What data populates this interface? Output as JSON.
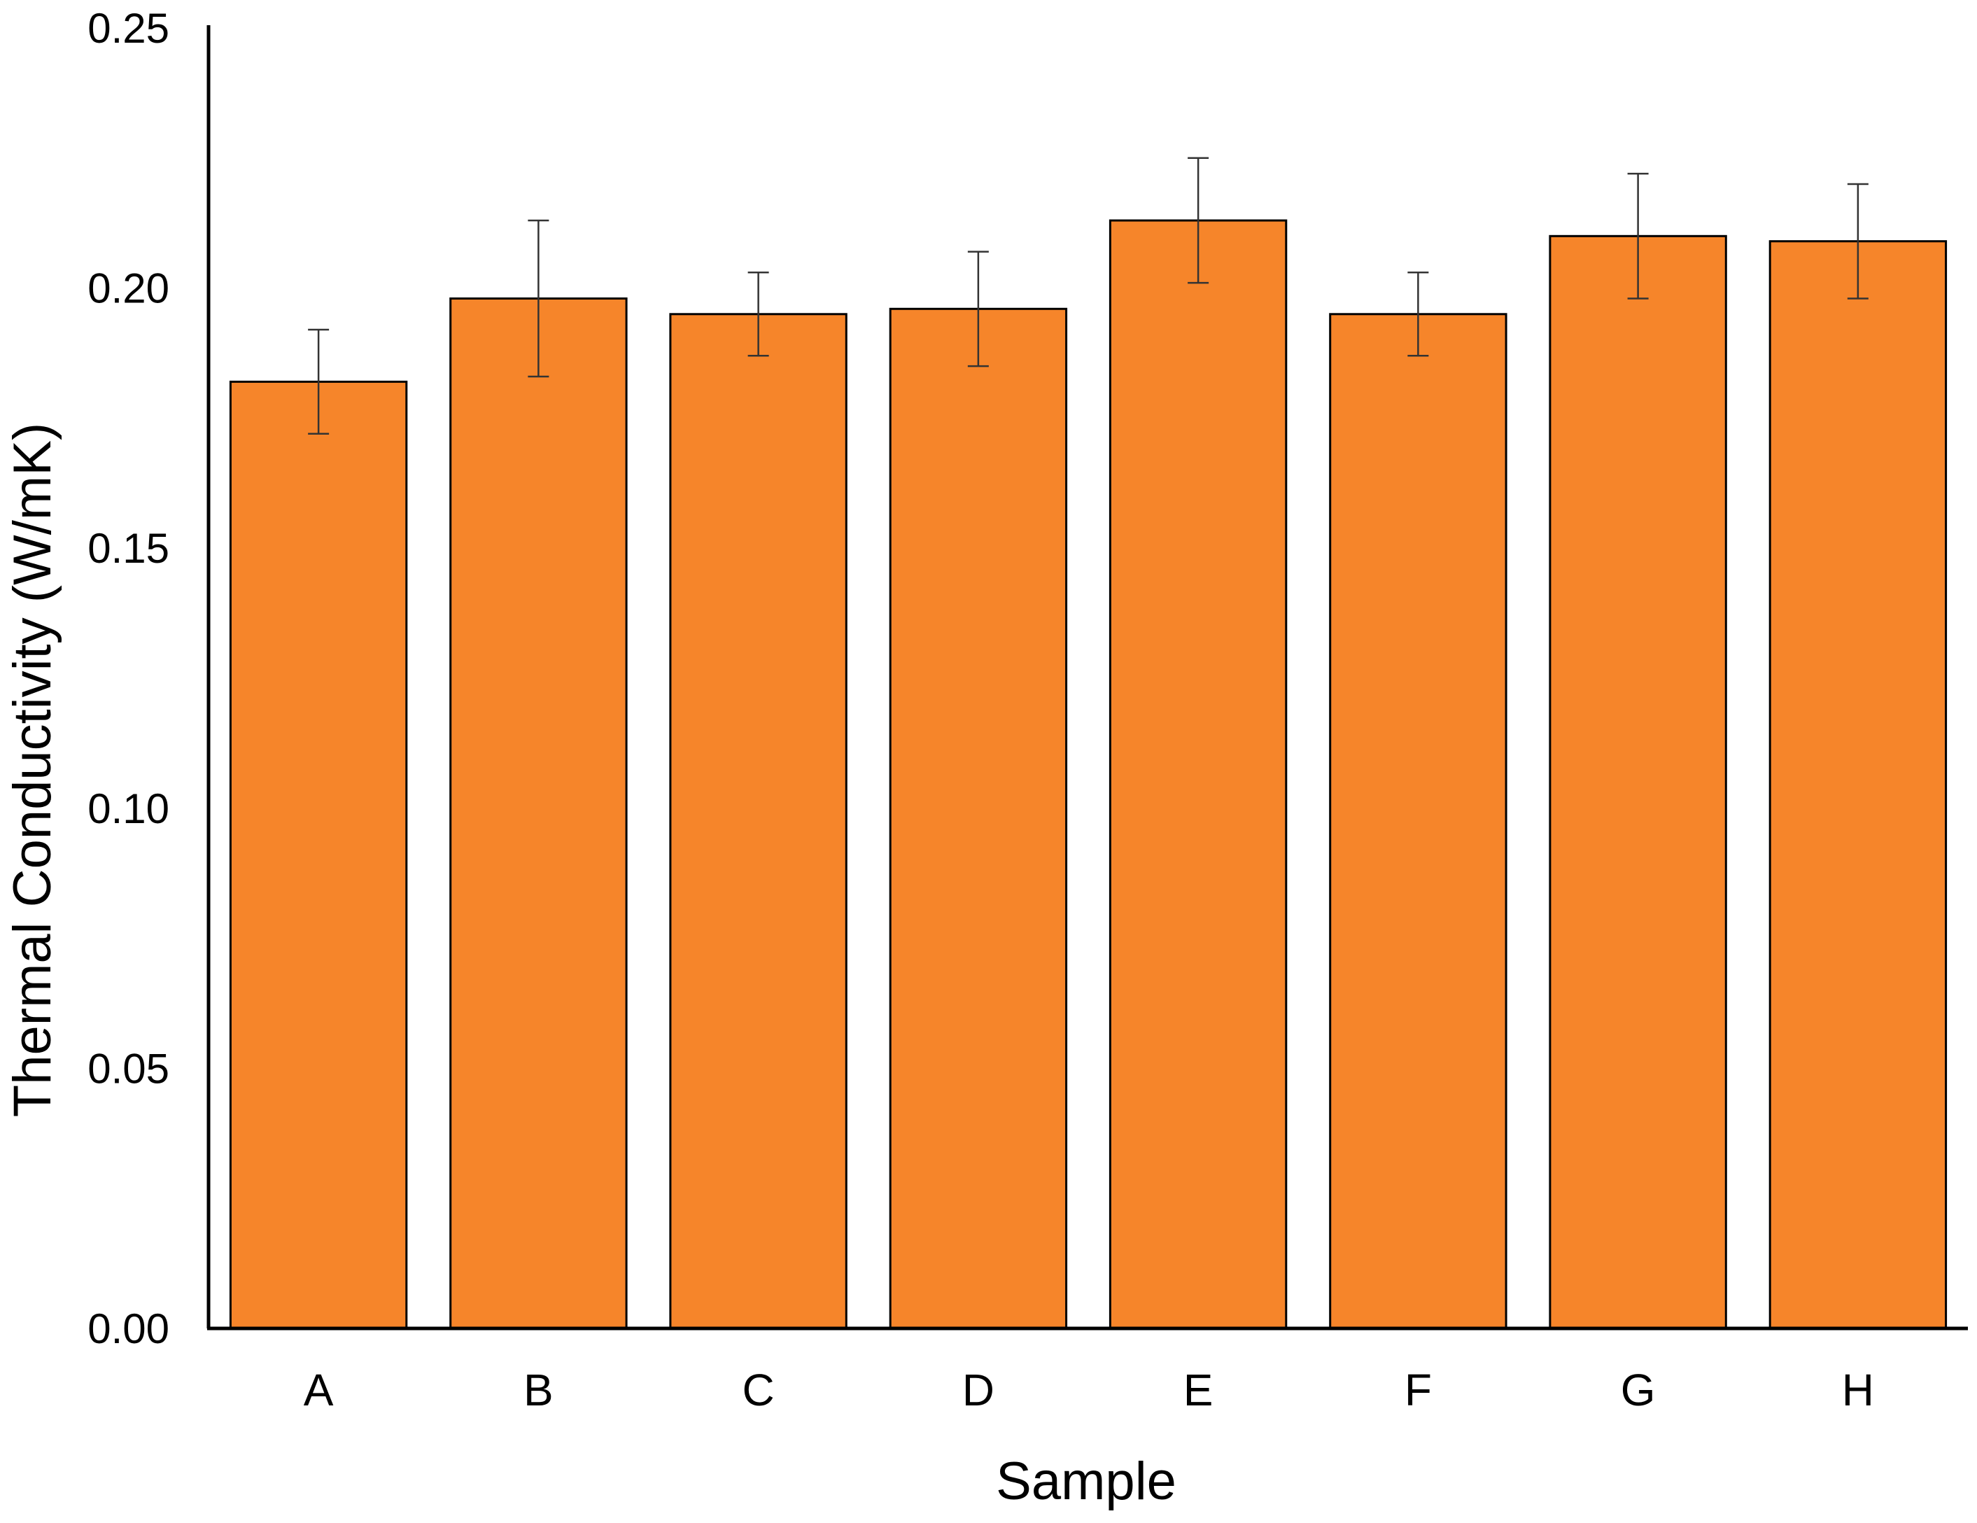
{
  "chart_data": {
    "type": "bar",
    "title": "",
    "xlabel": "Sample",
    "ylabel": "Thermal Conductivity (W/mK)",
    "categories": [
      "A",
      "B",
      "C",
      "D",
      "E",
      "F",
      "G",
      "H"
    ],
    "values": [
      0.182,
      0.198,
      0.195,
      0.196,
      0.213,
      0.195,
      0.21,
      0.209
    ],
    "error": [
      0.01,
      0.015,
      0.008,
      0.011,
      0.012,
      0.008,
      0.012,
      0.011
    ],
    "ylim": [
      0,
      0.25
    ],
    "yticks": [
      "0.00",
      "0.05",
      "0.10",
      "0.15",
      "0.20",
      "0.25"
    ],
    "grid": false,
    "legend": "none",
    "colors": {
      "bar_fill": "#F6852A",
      "bar_stroke": "#000000",
      "axis": "#000000",
      "error_bar": "#333333"
    }
  }
}
